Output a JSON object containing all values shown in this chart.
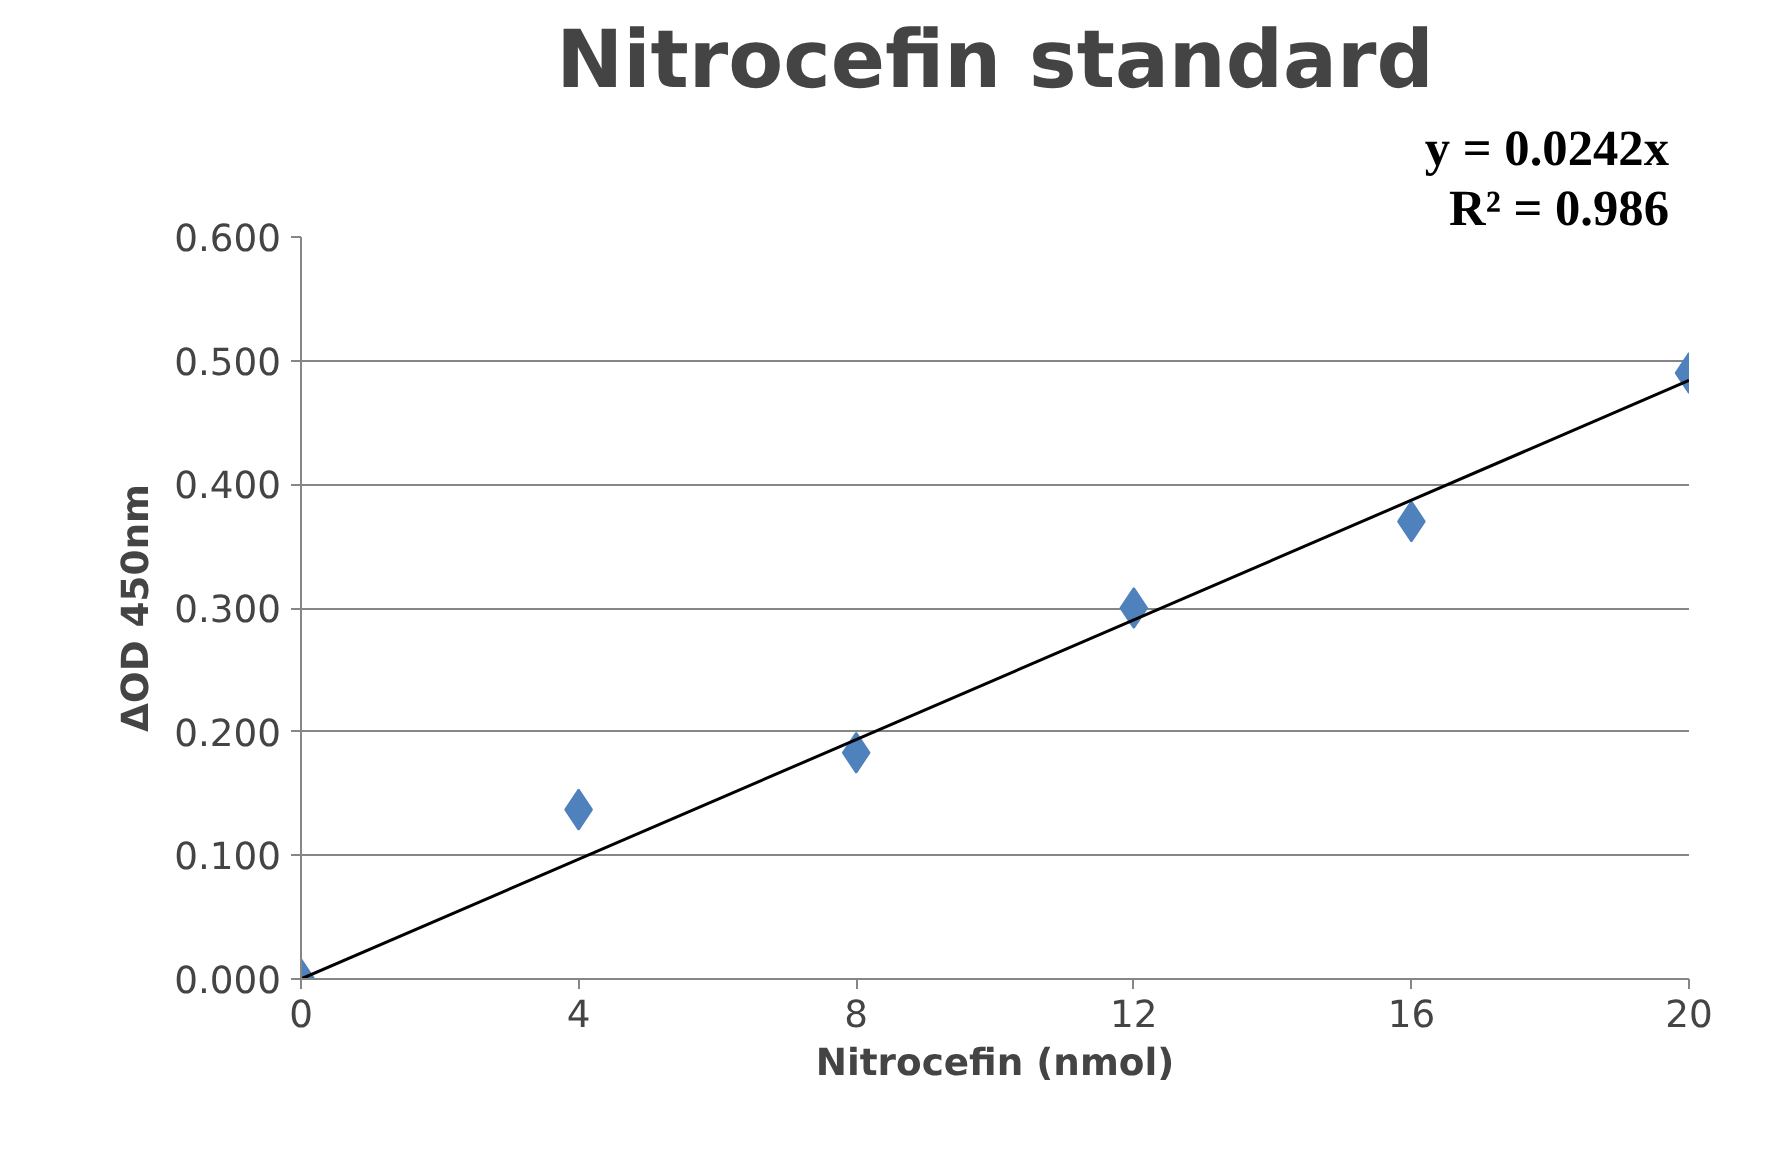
{
  "chart_data": {
    "type": "scatter",
    "title": "Nitrocefin standard",
    "xlabel": "Nitrocefin (nmol)",
    "ylabel": "ΔOD 450nm",
    "annotations": [
      "y = 0.0242x",
      "R² = 0.986"
    ],
    "x": [
      0,
      4,
      8,
      12,
      16,
      20
    ],
    "series": [
      {
        "type": "scatter",
        "color": "#4f81bd",
        "marker": "diamond",
        "values": [
          0.0,
          0.137,
          0.183,
          0.3,
          0.37,
          0.49
        ]
      },
      {
        "type": "line",
        "color": "#000000",
        "marker": "none",
        "x": [
          0,
          20
        ],
        "values": [
          0,
          0.484
        ]
      }
    ],
    "xlim": [
      0,
      20
    ],
    "xticks": [
      0,
      4,
      8,
      12,
      16,
      20
    ],
    "ylim": [
      0,
      0.6
    ],
    "yticks": [
      {
        "value": 0,
        "label": "0.000"
      },
      {
        "value": 0.1,
        "label": "0.100"
      },
      {
        "value": 0.2,
        "label": "0.200"
      },
      {
        "value": 0.3,
        "label": "0.300"
      },
      {
        "value": 0.4,
        "label": "0.400"
      },
      {
        "value": 0.5,
        "label": "0.500"
      },
      {
        "value": 0.6,
        "label": "0.600"
      }
    ],
    "grid": "y"
  }
}
